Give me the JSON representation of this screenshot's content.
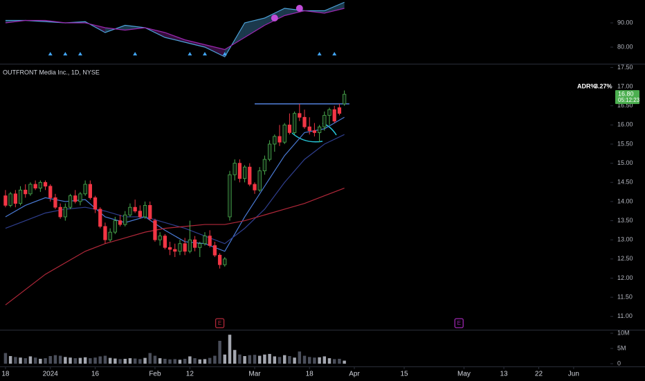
{
  "chart_data": [
    {
      "type": "line",
      "ylim": [
        73.14,
        99.43
      ],
      "yticks": [
        {
          "value": 90,
          "label": "90.00"
        },
        {
          "value": 80,
          "label": "80.00"
        }
      ],
      "series": [
        {
          "color": "#4da3d9",
          "x": [
            0,
            4,
            8,
            12,
            16,
            20,
            24,
            28,
            32,
            36,
            40,
            44,
            48,
            52,
            56,
            60,
            64,
            68
          ],
          "values": [
            91,
            91,
            90.5,
            90,
            90.5,
            86,
            89,
            88,
            84,
            82,
            80,
            76,
            90,
            92,
            96,
            95,
            95,
            98.5
          ]
        },
        {
          "color": "#9c27b0",
          "x": [
            0,
            4,
            8,
            12,
            16,
            20,
            24,
            28,
            32,
            36,
            40,
            44,
            48,
            52,
            56,
            60,
            64,
            68
          ],
          "values": [
            90,
            91,
            91,
            90,
            90,
            88,
            87,
            88,
            86,
            83,
            81,
            79,
            84,
            89,
            93,
            95,
            94,
            96
          ]
        }
      ],
      "dots": {
        "color": "#c04cd8",
        "x": [
          54,
          59
        ],
        "values": [
          92,
          96
        ]
      },
      "signal_bars": [
        9,
        12,
        15,
        26,
        37,
        40,
        44,
        63,
        66
      ],
      "signal_color": "#42a5f5"
    },
    {
      "type": "candlestick",
      "title": "OUTFRONT Media Inc., 1D, NYSE",
      "xlim": [
        -1.1,
        121.1
      ],
      "xticks": [
        {
          "value": 0,
          "label": "18"
        },
        {
          "value": 9,
          "label": "2024"
        },
        {
          "value": 18,
          "label": "16"
        },
        {
          "value": 30,
          "label": "Feb"
        },
        {
          "value": 37,
          "label": "12"
        },
        {
          "value": 50,
          "label": "Mar"
        },
        {
          "value": 61,
          "label": "18"
        },
        {
          "value": 70,
          "label": "Apr"
        },
        {
          "value": 80,
          "label": "15"
        },
        {
          "value": 92,
          "label": "May"
        },
        {
          "value": 100,
          "label": "13"
        },
        {
          "value": 107,
          "label": "22"
        },
        {
          "value": 114,
          "label": "Jun"
        }
      ],
      "ylim": [
        10.67,
        17.58
      ],
      "yticks": [
        {
          "value": 11,
          "label": "11.00"
        },
        {
          "value": 11.5,
          "label": "11.50"
        },
        {
          "value": 12,
          "label": "12.00"
        },
        {
          "value": 12.5,
          "label": "12.50"
        },
        {
          "value": 13,
          "label": "13.00"
        },
        {
          "value": 13.5,
          "label": "13.50"
        },
        {
          "value": 14,
          "label": "14.00"
        },
        {
          "value": 14.5,
          "label": "14.50"
        },
        {
          "value": 15,
          "label": "15.00"
        },
        {
          "value": 15.5,
          "label": "15.50"
        },
        {
          "value": 16,
          "label": "16.00"
        },
        {
          "value": 16.5,
          "label": "16.50"
        },
        {
          "value": 17,
          "label": "17.00"
        },
        {
          "value": 17.5,
          "label": "17.50"
        }
      ],
      "up_color": "#4caf50",
      "down_color": "#f23645",
      "open": [
        14.15,
        13.9,
        14.2,
        13.95,
        14.3,
        14.2,
        14.45,
        14.35,
        14.5,
        14.4,
        14.1,
        13.85,
        13.6,
        13.85,
        14.15,
        14.0,
        14.2,
        14.45,
        14.1,
        13.8,
        13.35,
        13.0,
        13.2,
        13.5,
        13.4,
        13.65,
        13.85,
        13.75,
        13.6,
        13.9,
        13.5,
        13.0,
        13.1,
        12.8,
        12.75,
        12.7,
        12.9,
        12.7,
        13.0,
        12.8,
        12.9,
        13.1,
        12.85,
        12.6,
        12.35,
        13.6,
        14.7,
        15.0,
        14.6,
        14.9,
        14.45,
        14.3,
        14.8,
        15.1,
        15.5,
        15.7,
        15.55,
        16.0,
        15.8,
        16.3,
        16.2,
        15.95,
        15.85,
        15.8,
        15.95,
        16.25,
        16.4,
        16.45,
        16.55
      ],
      "high": [
        14.3,
        14.25,
        14.3,
        14.4,
        14.45,
        14.5,
        14.55,
        14.55,
        14.55,
        14.45,
        14.2,
        13.95,
        13.95,
        14.2,
        14.3,
        14.25,
        14.55,
        14.55,
        14.15,
        13.85,
        13.45,
        13.3,
        13.6,
        13.65,
        13.75,
        13.95,
        14.05,
        13.9,
        14.0,
        14.0,
        13.55,
        13.2,
        13.15,
        12.95,
        12.9,
        13.0,
        13.05,
        13.5,
        13.1,
        12.95,
        13.2,
        13.25,
        12.95,
        12.65,
        12.55,
        14.8,
        15.1,
        15.1,
        14.95,
        15.0,
        14.5,
        14.9,
        15.2,
        15.6,
        15.75,
        16.0,
        16.05,
        16.3,
        16.35,
        16.55,
        16.4,
        16.2,
        16.05,
        16.0,
        16.35,
        16.45,
        16.5,
        16.55,
        16.9
      ],
      "low": [
        13.85,
        13.85,
        13.85,
        13.9,
        14.1,
        14.15,
        14.3,
        14.25,
        14.3,
        14.0,
        13.8,
        13.55,
        13.5,
        13.8,
        13.95,
        13.9,
        14.15,
        14.05,
        13.7,
        13.3,
        12.9,
        12.95,
        13.15,
        13.35,
        13.35,
        13.6,
        13.7,
        13.55,
        13.55,
        13.5,
        12.95,
        12.85,
        12.75,
        12.6,
        12.55,
        12.6,
        12.6,
        12.65,
        12.7,
        12.55,
        12.85,
        12.8,
        12.55,
        12.25,
        12.3,
        13.5,
        14.55,
        14.5,
        14.5,
        14.4,
        14.2,
        14.25,
        14.7,
        15.05,
        15.3,
        15.45,
        15.5,
        15.75,
        15.75,
        16.1,
        15.9,
        15.75,
        15.7,
        15.55,
        15.85,
        16.0,
        16.05,
        16.25,
        16.5
      ],
      "close": [
        13.9,
        14.2,
        13.95,
        14.3,
        14.2,
        14.45,
        14.35,
        14.5,
        14.4,
        14.1,
        13.85,
        13.6,
        13.85,
        14.15,
        14.0,
        14.2,
        14.45,
        14.1,
        13.8,
        13.35,
        13.0,
        13.2,
        13.5,
        13.4,
        13.65,
        13.85,
        13.75,
        13.6,
        13.9,
        13.55,
        13.0,
        13.1,
        12.8,
        12.75,
        12.7,
        12.9,
        12.7,
        13.0,
        12.8,
        12.9,
        13.1,
        12.85,
        12.6,
        12.35,
        12.5,
        14.7,
        15.0,
        14.6,
        14.9,
        14.45,
        14.3,
        14.8,
        15.1,
        15.5,
        15.7,
        15.55,
        16.0,
        15.8,
        16.3,
        16.2,
        15.95,
        15.85,
        15.8,
        15.95,
        16.25,
        16.4,
        16.1,
        16.3,
        16.8
      ],
      "series": [
        {
          "color": "#4a7bd6",
          "x": [
            0,
            4,
            8,
            12,
            16,
            20,
            24,
            28,
            32,
            36,
            40,
            44,
            48,
            52,
            56,
            60,
            64,
            68
          ],
          "values": [
            13.6,
            13.9,
            14.1,
            14.0,
            14.05,
            13.6,
            13.45,
            13.6,
            13.25,
            12.95,
            12.9,
            12.7,
            13.6,
            14.4,
            15.2,
            15.8,
            15.9,
            16.2
          ]
        },
        {
          "color": "#2f3f8f",
          "x": [
            0,
            4,
            8,
            12,
            16,
            20,
            24,
            28,
            32,
            36,
            40,
            44,
            48,
            52,
            56,
            60,
            64,
            68
          ],
          "values": [
            13.3,
            13.5,
            13.7,
            13.8,
            13.85,
            13.75,
            13.6,
            13.6,
            13.45,
            13.3,
            13.1,
            12.9,
            13.3,
            13.8,
            14.5,
            15.1,
            15.5,
            15.75
          ]
        },
        {
          "color": "#b2283a",
          "x": [
            0,
            4,
            8,
            12,
            16,
            20,
            24,
            28,
            32,
            36,
            40,
            44,
            48,
            52,
            56,
            60,
            64,
            68
          ],
          "values": [
            11.3,
            11.7,
            12.1,
            12.4,
            12.7,
            12.9,
            13.05,
            13.2,
            13.3,
            13.35,
            13.4,
            13.4,
            13.5,
            13.65,
            13.8,
            13.95,
            14.15,
            14.35
          ]
        }
      ],
      "hline": {
        "value": 16.55,
        "x": [
          50,
          69
        ],
        "color": "#5b8def"
      },
      "earnings": [
        {
          "x": 43,
          "label": "E",
          "color": "#b2283a"
        },
        {
          "x": 91,
          "label": "E",
          "color": "#9c27b0"
        }
      ],
      "adr_label": "ADR%",
      "adr_value": "3.27%",
      "last_price": {
        "value": 16.8,
        "label": "16.80"
      },
      "countdown": "05:12:23",
      "price_color": "#4caf50"
    },
    {
      "type": "bar",
      "ylim": [
        -680000,
        10680000
      ],
      "yticks": [
        {
          "value": 0,
          "label": "0"
        },
        {
          "value": 5000000,
          "label": "5M"
        },
        {
          "value": 10000000,
          "label": "10M"
        }
      ],
      "up_color": "#a3a6af",
      "down_color": "#4a4e5a",
      "values": [
        3500000,
        2500000,
        2200000,
        2000000,
        1800000,
        2400000,
        2000000,
        1600000,
        1800000,
        2500000,
        2800000,
        2600000,
        2200000,
        2000000,
        1800000,
        1900000,
        2100000,
        1800000,
        2000000,
        2400000,
        2600000,
        1900000,
        1700000,
        1500000,
        1600000,
        1800000,
        1700000,
        1500000,
        1900000,
        3500000,
        2600000,
        1800000,
        1600000,
        1400000,
        1500000,
        1300000,
        1600000,
        2400000,
        1800000,
        1400000,
        1500000,
        1900000,
        2600000,
        7500000,
        3000000,
        9500000,
        4500000,
        3000000,
        2500000,
        2800000,
        2900000,
        2600000,
        3000000,
        3200000,
        2400000,
        2200000,
        2800000,
        2500000,
        2000000,
        4000000,
        2600000,
        2200000,
        2000000,
        2100000,
        2400000,
        1800000,
        1500000,
        1600000,
        1000000
      ]
    }
  ]
}
